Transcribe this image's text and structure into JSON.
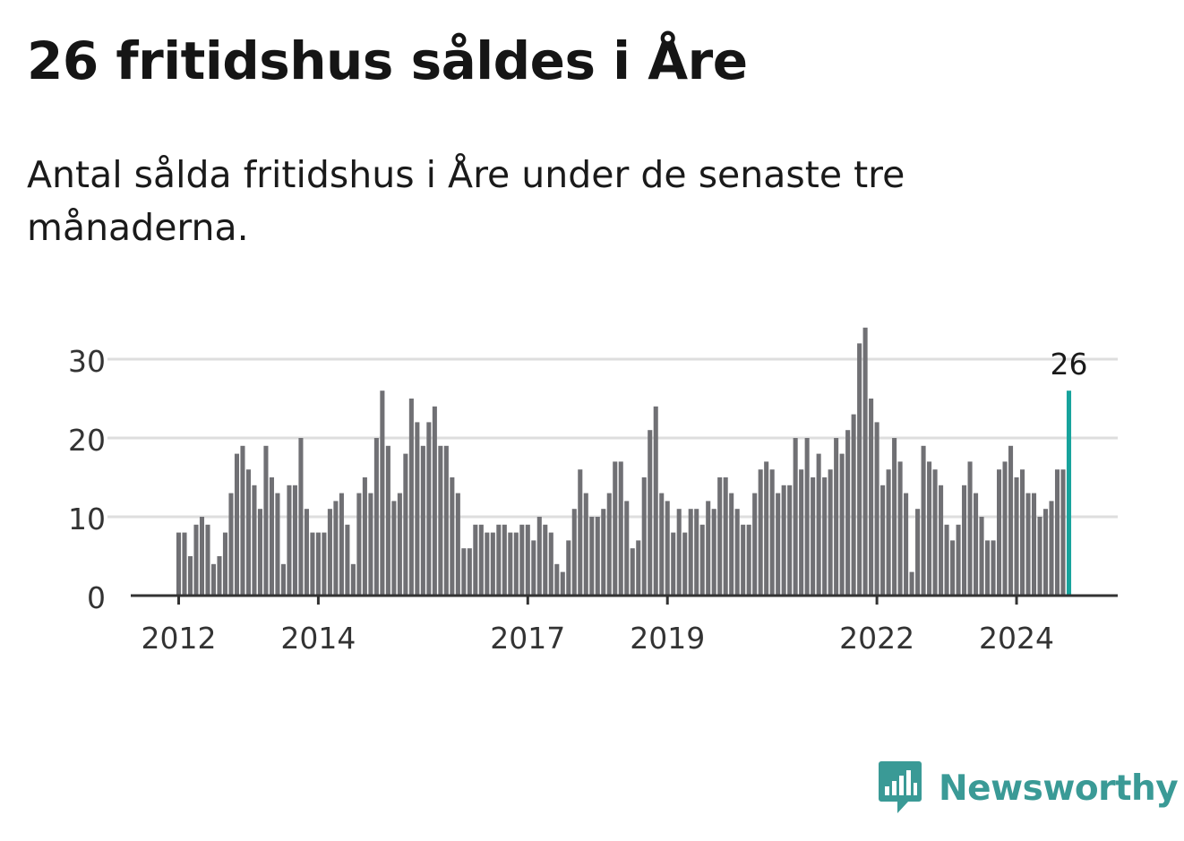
{
  "title": "26 fritidshus såldes i Åre",
  "subtitle": "Antal sålda fritidshus i Åre under de senaste tre månaderna.",
  "colors": {
    "bars": "#707074",
    "highlight": "#17a39c",
    "grid": "#dedede",
    "axis": "#333333",
    "brand": "#3a9a96"
  },
  "logo": {
    "text": "Newsworthy",
    "icon": "newsworthy-bar-chart-icon"
  },
  "chart_data": {
    "type": "bar",
    "ylim": [
      0,
      34
    ],
    "yticks": [
      0,
      10,
      20,
      30
    ],
    "xticks": [
      {
        "label": "2012",
        "index": 0
      },
      {
        "label": "2014",
        "index": 24
      },
      {
        "label": "2017",
        "index": 60
      },
      {
        "label": "2019",
        "index": 84
      },
      {
        "label": "2022",
        "index": 120
      },
      {
        "label": "2024",
        "index": 144
      }
    ],
    "first_period": "2012-01",
    "last_label": "26",
    "values": [
      8,
      8,
      5,
      9,
      10,
      9,
      4,
      5,
      8,
      13,
      18,
      19,
      16,
      14,
      11,
      19,
      15,
      13,
      4,
      14,
      14,
      20,
      11,
      8,
      8,
      8,
      11,
      12,
      13,
      9,
      4,
      13,
      15,
      13,
      20,
      26,
      19,
      12,
      13,
      18,
      25,
      22,
      19,
      22,
      24,
      19,
      19,
      15,
      13,
      6,
      6,
      9,
      9,
      8,
      8,
      9,
      9,
      8,
      8,
      9,
      9,
      7,
      10,
      9,
      8,
      4,
      3,
      7,
      11,
      16,
      13,
      10,
      10,
      11,
      13,
      17,
      17,
      12,
      6,
      7,
      15,
      21,
      24,
      13,
      12,
      8,
      11,
      8,
      11,
      11,
      9,
      12,
      11,
      15,
      15,
      13,
      11,
      9,
      9,
      13,
      16,
      17,
      16,
      13,
      14,
      14,
      20,
      16,
      20,
      15,
      18,
      15,
      16,
      20,
      18,
      21,
      23,
      32,
      34,
      25,
      22,
      14,
      16,
      20,
      17,
      13,
      3,
      11,
      19,
      17,
      16,
      14,
      9,
      7,
      9,
      14,
      17,
      13,
      10,
      7,
      7,
      16,
      17,
      19,
      15,
      16,
      13,
      13,
      10,
      11,
      12,
      16,
      16,
      26
    ]
  }
}
